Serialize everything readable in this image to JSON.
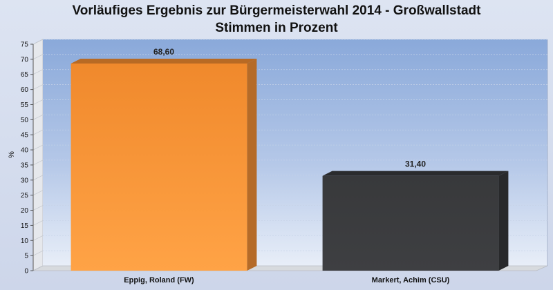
{
  "chart_data": {
    "type": "bar",
    "title": "Vorläufiges Ergebnis zur Bürgermeisterwahl 2014 - Großwallstadt",
    "subtitle": "Stimmen in Prozent",
    "ylabel": "%",
    "xlabel": "",
    "ylim": [
      0,
      75
    ],
    "ytick_step": 5,
    "grid": true,
    "legend": "none",
    "categories": [
      "Eppig, Roland (FW)",
      "Markert, Achim (CSU)"
    ],
    "values": [
      68.6,
      31.4
    ],
    "value_labels": [
      "68,60",
      "31,40"
    ],
    "colors": [
      "#f7943a",
      "#3a3b3d"
    ]
  }
}
